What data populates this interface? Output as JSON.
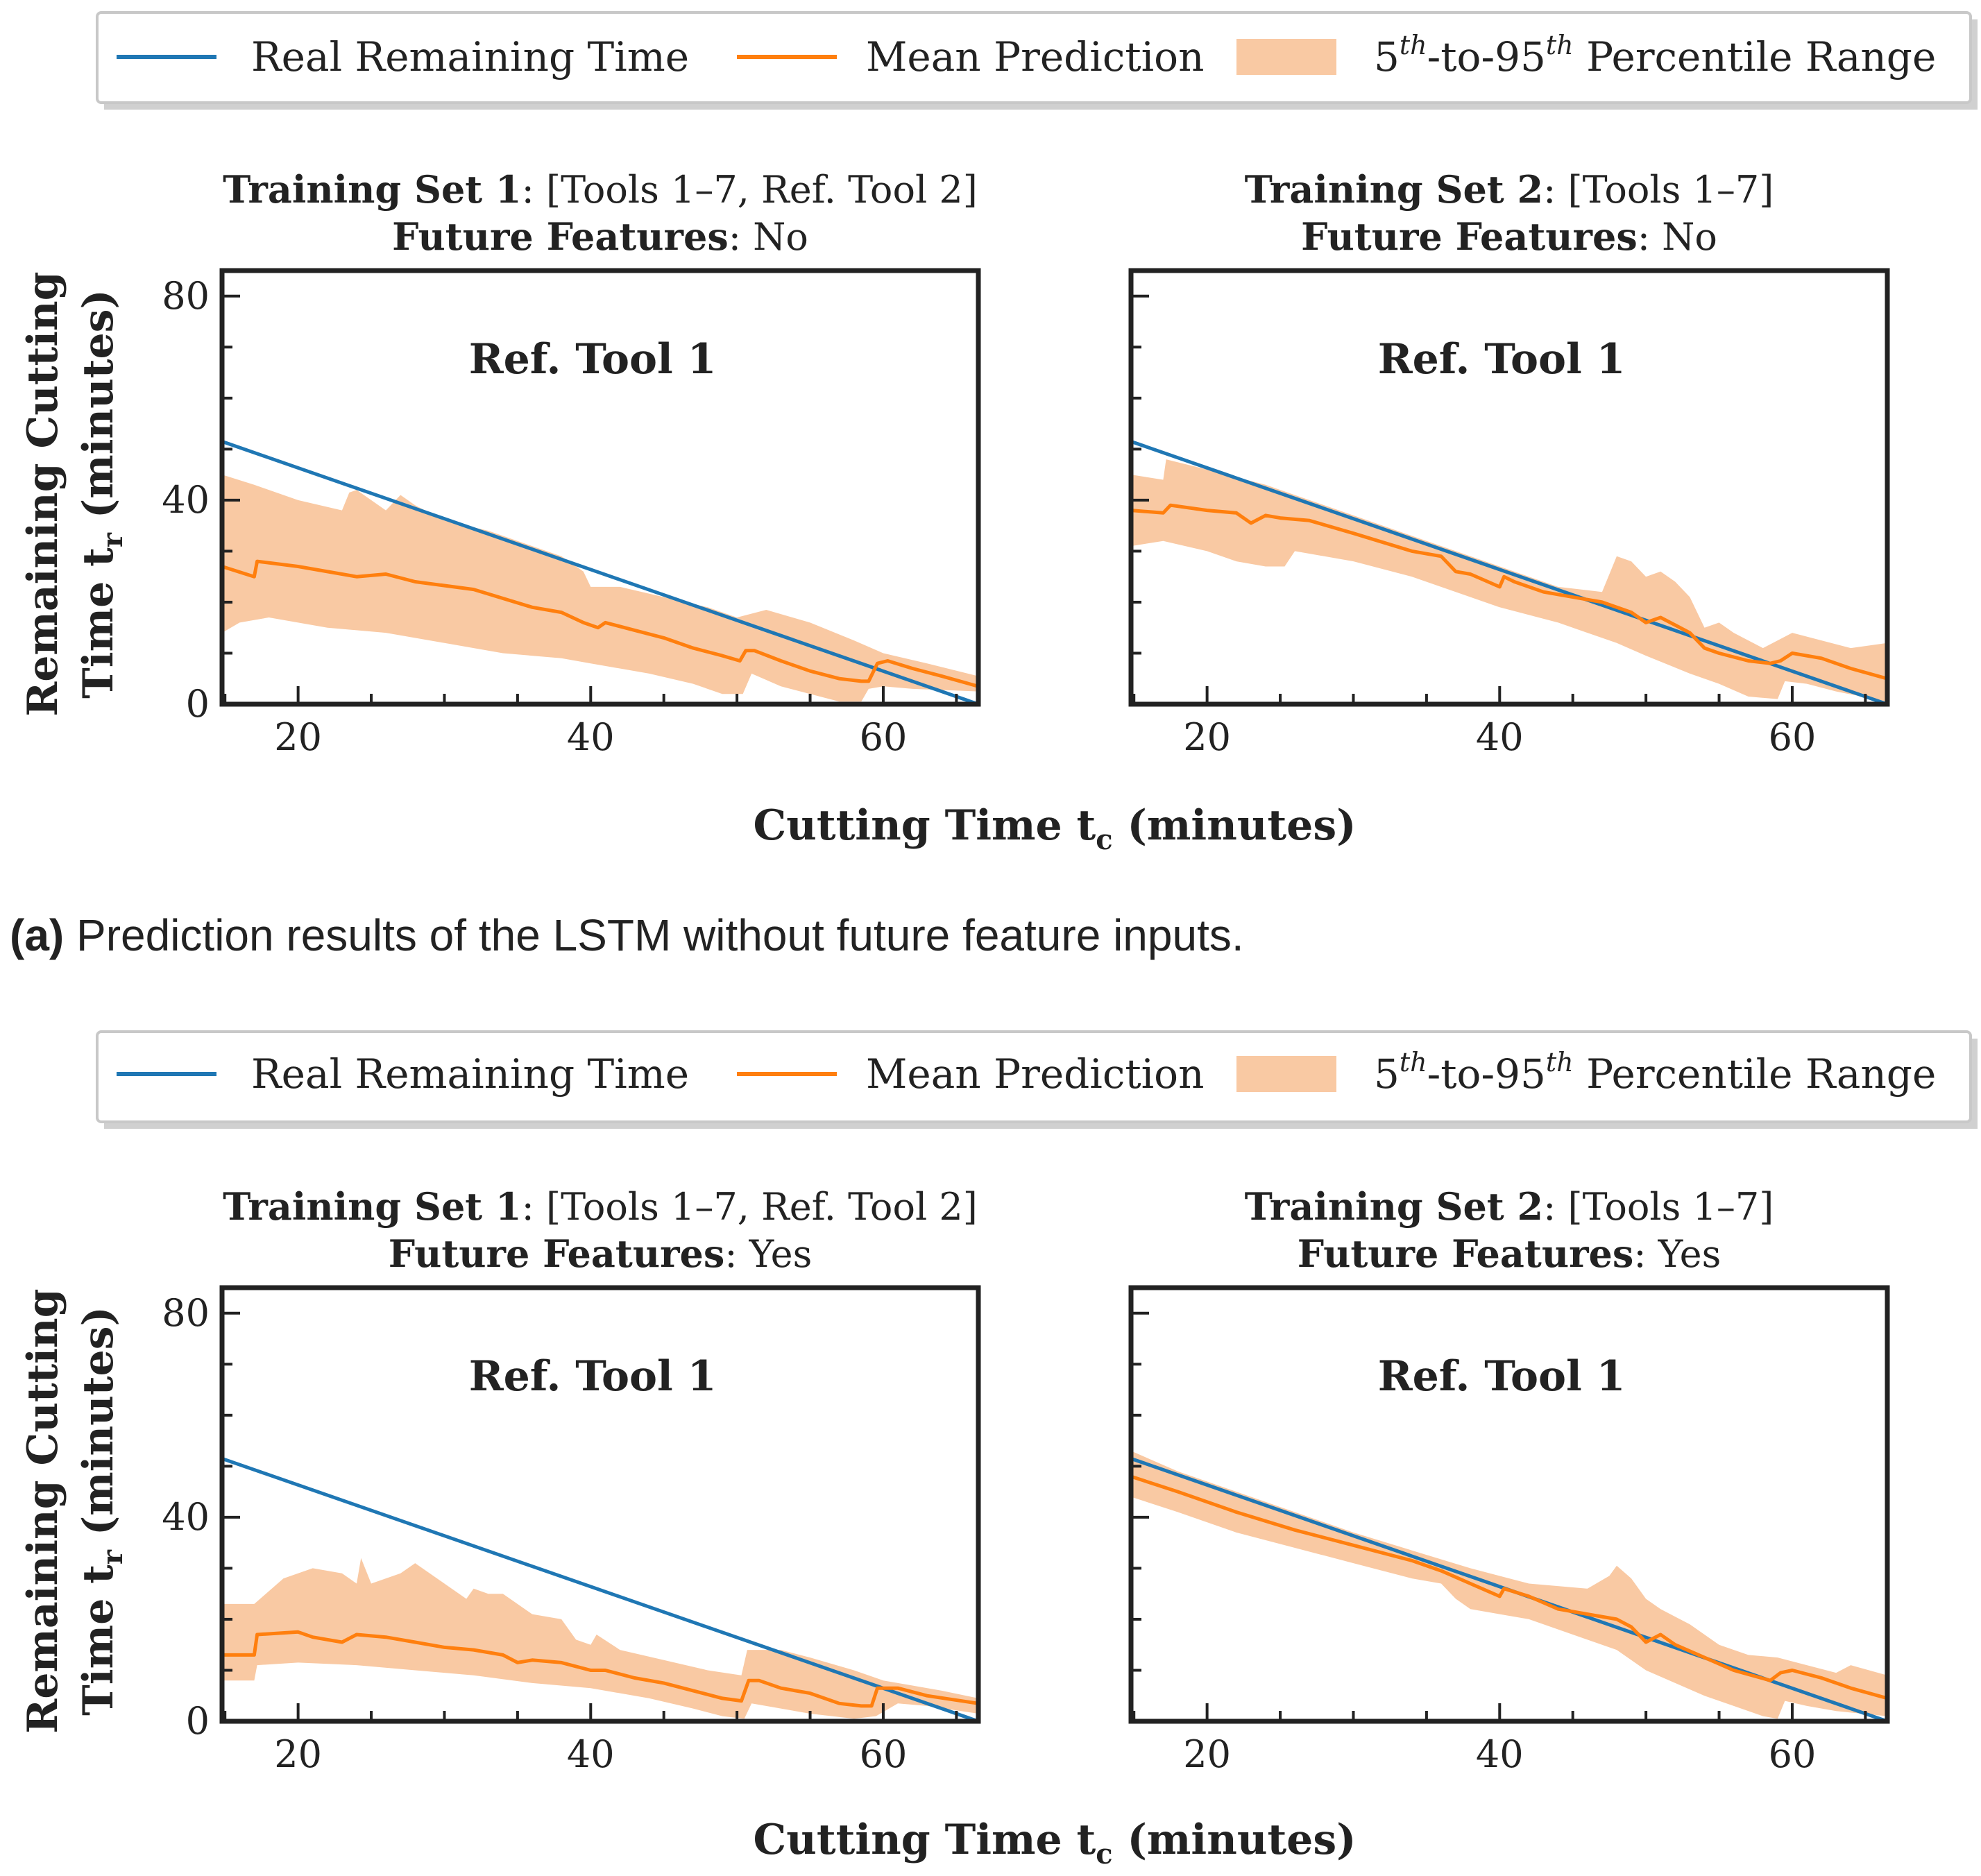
{
  "legend": {
    "real_label": "Real Remaining Time",
    "mean_label": "Mean Prediction",
    "range_label_prefix": "5",
    "range_label_sup1": "th",
    "range_label_mid": "-to-95",
    "range_label_sup2": "th",
    "range_label_suffix": " Percentile Range"
  },
  "colors": {
    "real": "#1f77b4",
    "mean": "#ff7f0e",
    "band": "#f9c9a3",
    "axes": "#222222"
  },
  "axis": {
    "xlabel_main": "Cutting Time t",
    "xlabel_sub": "c",
    "xlabel_unit": " (minutes)",
    "ylabel_line1": "Remaining Cutting",
    "ylabel_line2_main": "Time t",
    "ylabel_line2_sub": "r",
    "ylabel_line2_unit": " (minutes)",
    "xticks": [
      "20",
      "40",
      "60"
    ],
    "yticks": [
      "0",
      "40",
      "80"
    ]
  },
  "caption_a": {
    "label": "(a)",
    "text": " Prediction results of the LSTM without future feature inputs."
  },
  "chart_data": [
    {
      "type": "line",
      "id": "top-left",
      "title_bold1": "Training Set 1",
      "title_rest1": ": [Tools 1–7, Ref. Tool 2]",
      "title_bold2": "Future Features",
      "title_rest2": ": No",
      "annotation": "Ref. Tool 1",
      "xlim": [
        14.8,
        66.5
      ],
      "ylim": [
        0,
        85
      ],
      "real": {
        "x": [
          14.8,
          66.5
        ],
        "y": [
          51.5,
          0
        ]
      },
      "mean": {
        "x": [
          14.8,
          17,
          17.2,
          20,
          24,
          26,
          28,
          32,
          36,
          38,
          39.5,
          40.5,
          41,
          43,
          45,
          47,
          49,
          50.2,
          50.6,
          51.2,
          53,
          55,
          57,
          58.5,
          59,
          59.6,
          60.3,
          62,
          64,
          66.5
        ],
        "y": [
          27,
          25,
          28,
          27,
          25,
          25.5,
          24,
          22.5,
          19,
          18,
          16,
          15,
          16,
          14.5,
          13,
          11,
          9.5,
          8.5,
          10.5,
          10.5,
          8.5,
          6.5,
          5,
          4.5,
          4.5,
          8,
          8.5,
          7,
          5.5,
          3.5
        ]
      },
      "band_upper": {
        "x": [
          14.8,
          17,
          20,
          23,
          23.5,
          24,
          25,
          26,
          27,
          28,
          30,
          33,
          36,
          38,
          39.5,
          40,
          42,
          45,
          48,
          50,
          52,
          55,
          58,
          60,
          63,
          66.5
        ],
        "y": [
          45,
          43,
          40,
          38,
          41.5,
          42,
          40,
          38,
          41,
          39,
          36,
          34,
          31,
          29,
          26,
          23,
          23,
          21,
          19,
          17,
          18.5,
          16,
          12.5,
          10,
          8,
          5.5
        ]
      },
      "band_lower": {
        "x": [
          14.8,
          16,
          18,
          22,
          26,
          30,
          34,
          38,
          40,
          44,
          47,
          49,
          50.4,
          51,
          53,
          55,
          57,
          58.5,
          59,
          60,
          62,
          66.5
        ],
        "y": [
          14,
          16,
          17,
          15,
          14,
          12,
          10,
          9,
          8,
          6,
          4,
          2,
          2,
          6,
          3.5,
          2,
          0.5,
          0.5,
          3,
          3.5,
          3,
          2.5
        ]
      }
    },
    {
      "type": "line",
      "id": "top-right",
      "title_bold1": "Training Set 2",
      "title_rest1": ": [Tools 1–7]",
      "title_bold2": "Future Features",
      "title_rest2": ": No",
      "annotation": "Ref. Tool 1",
      "xlim": [
        14.8,
        66.5
      ],
      "ylim": [
        0,
        85
      ],
      "real": {
        "x": [
          14.8,
          66.5
        ],
        "y": [
          51.5,
          0
        ]
      },
      "mean": {
        "x": [
          14.8,
          17,
          17.5,
          20,
          22,
          23,
          24,
          25,
          27,
          30,
          34,
          36,
          37,
          38,
          40,
          40.3,
          41,
          43,
          45,
          47,
          49,
          50,
          51,
          52,
          53,
          54,
          55,
          57,
          58.5,
          59.2,
          60,
          62,
          64,
          66.5
        ],
        "y": [
          38,
          37.5,
          39,
          38,
          37.5,
          35.5,
          37,
          36.5,
          36,
          33.5,
          30,
          29,
          26,
          25.5,
          23,
          25,
          24,
          22,
          21,
          20,
          18,
          16,
          17,
          15.5,
          14,
          11,
          10,
          8.5,
          8,
          8.5,
          10,
          9,
          7,
          5
        ]
      },
      "band_upper": {
        "x": [
          14.8,
          17,
          17.2,
          20,
          24,
          26,
          30,
          34,
          37,
          40,
          44,
          47,
          48,
          49,
          50,
          51,
          52,
          53,
          54,
          55,
          56,
          58,
          60,
          62,
          64,
          66.5
        ],
        "y": [
          45,
          44,
          48,
          46,
          43,
          41,
          37,
          33,
          30,
          27,
          23,
          22,
          29,
          28,
          25,
          26,
          24,
          21,
          15,
          16,
          14,
          11,
          14,
          12.5,
          11,
          12
        ]
      },
      "band_lower": {
        "x": [
          14.8,
          17,
          20,
          22,
          24,
          25.3,
          26,
          30,
          34,
          37,
          40,
          44,
          48,
          50,
          53,
          55,
          57,
          59,
          59.5,
          61,
          63,
          66.5
        ],
        "y": [
          31,
          32,
          30,
          28,
          27,
          27,
          30,
          28,
          25,
          22,
          19,
          16,
          12,
          9.5,
          6,
          4,
          1.5,
          1,
          4.5,
          4,
          2.5,
          0.5
        ]
      }
    },
    {
      "type": "line",
      "id": "bottom-left",
      "title_bold1": "Training Set 1",
      "title_rest1": ": [Tools 1–7, Ref. Tool 2]",
      "title_bold2": "Future Features",
      "title_rest2": ": Yes",
      "annotation": "Ref. Tool 1",
      "xlim": [
        14.8,
        66.5
      ],
      "ylim": [
        0,
        85
      ],
      "real": {
        "x": [
          14.8,
          66.5
        ],
        "y": [
          51.5,
          0
        ]
      },
      "mean": {
        "x": [
          14.8,
          17,
          17.2,
          20,
          21,
          23,
          24,
          26,
          28,
          30,
          32,
          34,
          35,
          36,
          38,
          40,
          41,
          43,
          45,
          47,
          49,
          50.3,
          50.8,
          51.5,
          53,
          55,
          57,
          58.5,
          59.2,
          59.6,
          61,
          63,
          66.5
        ],
        "y": [
          13,
          13,
          17,
          17.5,
          16.5,
          15.5,
          17,
          16.5,
          15.5,
          14.5,
          14,
          13,
          11.5,
          12,
          11.5,
          10,
          10,
          8.5,
          7.5,
          6,
          4.5,
          4,
          8,
          8,
          6.5,
          5.5,
          3.5,
          3,
          3,
          6.5,
          6.5,
          5,
          3.5
        ]
      },
      "band_upper": {
        "x": [
          14.8,
          17,
          19,
          21,
          23,
          24,
          24.3,
          25,
          27,
          28,
          30,
          31.5,
          32,
          33,
          34,
          36,
          38,
          39,
          40,
          40.4,
          42,
          45,
          48,
          50.3,
          50.7,
          53,
          55,
          58,
          60,
          62,
          64,
          66.5
        ],
        "y": [
          23,
          23,
          28,
          30,
          29,
          27,
          32,
          27,
          29,
          31,
          27,
          24,
          26,
          25,
          25,
          21,
          20,
          16,
          15,
          17,
          14,
          12,
          10,
          9,
          14,
          14,
          12.5,
          10,
          8,
          7,
          6,
          4.5
        ]
      },
      "band_lower": {
        "x": [
          14.8,
          17,
          17.2,
          20,
          24,
          28,
          32,
          36,
          40,
          44,
          47,
          49,
          50.5,
          51,
          53,
          55,
          58,
          59.5,
          61,
          63,
          66.5
        ],
        "y": [
          8,
          8,
          11,
          11.5,
          11,
          10,
          9,
          7.5,
          6.5,
          4.5,
          2.5,
          1,
          0.5,
          3.5,
          2.5,
          1.5,
          0.5,
          1,
          3.5,
          3,
          1.5
        ]
      }
    },
    {
      "type": "line",
      "id": "bottom-right",
      "title_bold1": "Training Set 2",
      "title_rest1": ": [Tools 1–7]",
      "title_bold2": "Future Features",
      "title_rest2": ": Yes",
      "annotation": "Ref. Tool 1",
      "xlim": [
        14.8,
        66.5
      ],
      "ylim": [
        0,
        85
      ],
      "real": {
        "x": [
          14.8,
          66.5
        ],
        "y": [
          51.5,
          0
        ]
      },
      "mean": {
        "x": [
          14.8,
          18,
          22,
          26,
          30,
          34,
          36,
          38,
          40,
          40.3,
          42,
          44,
          46,
          48,
          49,
          50,
          51,
          52,
          54,
          56,
          58.5,
          59.2,
          60,
          62,
          64,
          66.5
        ],
        "y": [
          48,
          45,
          41,
          37.5,
          34.5,
          31.5,
          29.5,
          27,
          24.5,
          26,
          24.5,
          22,
          21,
          20,
          18.5,
          15.5,
          17,
          15,
          12.5,
          10,
          8,
          9.5,
          10,
          8.5,
          6.5,
          4.5
        ]
      },
      "band_upper": {
        "x": [
          14.8,
          18,
          22,
          26,
          30,
          34,
          38,
          42,
          46,
          47.5,
          48,
          49,
          50,
          51,
          53,
          55,
          57,
          59,
          61,
          63,
          64,
          66.5
        ],
        "y": [
          53,
          49,
          45,
          41,
          37,
          33.5,
          30,
          27,
          26,
          28.5,
          30.5,
          28,
          24,
          22,
          19,
          15,
          13,
          12.5,
          11,
          9.5,
          11,
          9
        ]
      },
      "band_lower": {
        "x": [
          14.8,
          18,
          22,
          26,
          30,
          34,
          36,
          37,
          38,
          40,
          42,
          44,
          46,
          48,
          50,
          52,
          54,
          56,
          58,
          59,
          59.5,
          61,
          63,
          66.5
        ],
        "y": [
          44,
          41,
          37,
          34,
          31,
          28,
          27,
          24,
          22,
          21,
          20,
          18,
          16,
          14,
          10,
          7.5,
          5,
          3,
          1,
          0.5,
          4,
          3,
          2,
          1
        ]
      }
    }
  ]
}
